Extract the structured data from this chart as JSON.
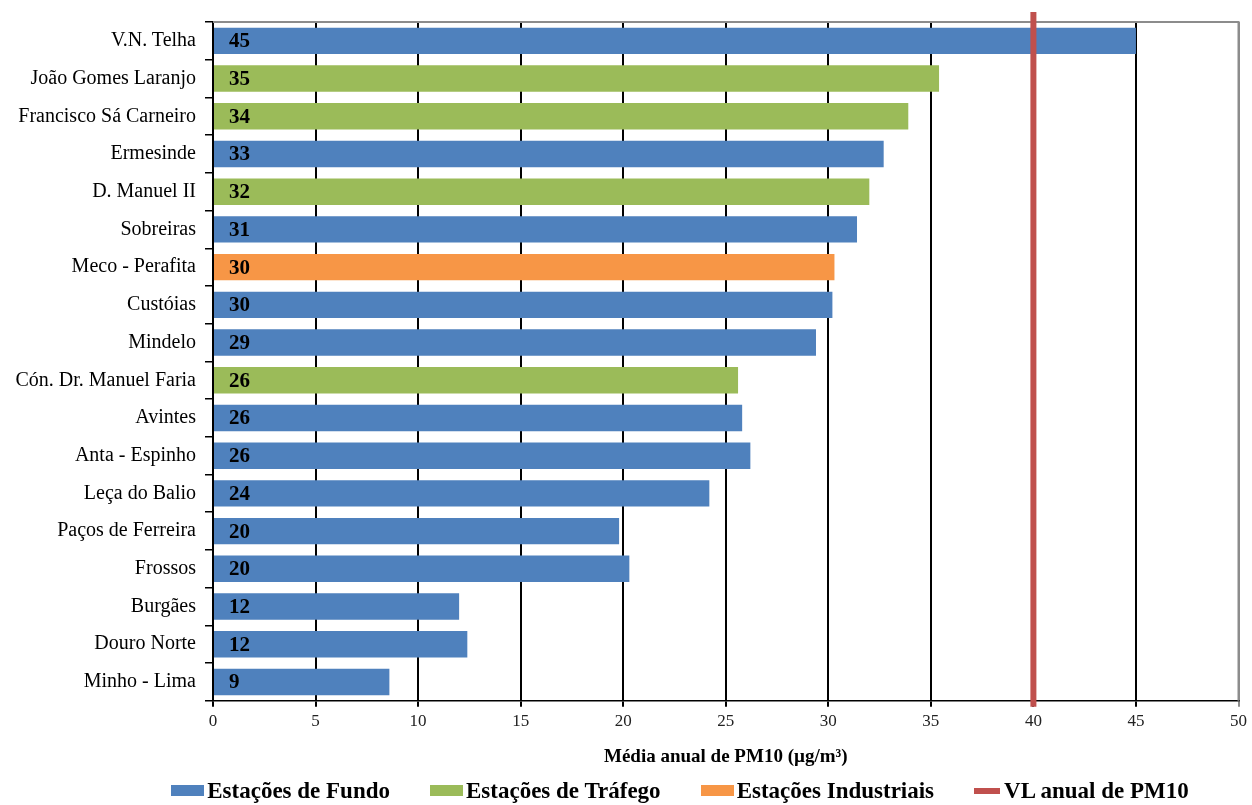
{
  "chart_data": {
    "type": "bar",
    "orientation": "horizontal",
    "stacked": true,
    "categories": [
      "V.N. Telha",
      "João Gomes Laranjo",
      "Francisco Sá Carneiro",
      "Ermesinde",
      "D. Manuel II",
      "Sobreiras",
      "Meco - Perafita",
      "Custóias",
      "Mindelo",
      "Cón. Dr. Manuel Faria",
      "Avintes",
      "Anta - Espinho",
      "Leça do Balio",
      "Paços de Ferreira",
      "Frossos",
      "Burgães",
      "Douro Norte",
      "Minho - Lima"
    ],
    "series": [
      {
        "name": "Estações de Fundo",
        "color": "#4f81bd",
        "values": [
          45,
          null,
          null,
          32.7,
          null,
          31.4,
          null,
          30.2,
          29.4,
          null,
          25.8,
          26.2,
          24.2,
          19.8,
          20.3,
          12.0,
          12.4,
          8.6
        ],
        "value_labels": [
          "45",
          null,
          null,
          "33",
          null,
          "31",
          null,
          "30",
          "29",
          null,
          "26",
          "26",
          "24",
          "20",
          "20",
          "12",
          "12",
          "9"
        ]
      },
      {
        "name": "Estações de Tráfego",
        "color": "#9bbb59",
        "values": [
          null,
          35.4,
          33.9,
          null,
          32.0,
          null,
          null,
          null,
          null,
          25.6,
          null,
          null,
          null,
          null,
          null,
          null,
          null,
          null
        ],
        "value_labels": [
          null,
          "35",
          "34",
          null,
          "32",
          null,
          null,
          null,
          null,
          "26",
          null,
          null,
          null,
          null,
          null,
          null,
          null,
          null
        ]
      },
      {
        "name": "Estações Industriais",
        "color": "#f79646",
        "values": [
          null,
          null,
          null,
          null,
          null,
          null,
          30.3,
          null,
          null,
          null,
          null,
          null,
          null,
          null,
          null,
          null,
          null,
          null
        ],
        "value_labels": [
          null,
          null,
          null,
          null,
          null,
          null,
          "30",
          null,
          null,
          null,
          null,
          null,
          null,
          null,
          null,
          null,
          null,
          null
        ]
      }
    ],
    "xlabel": "Média anual de PM10 (µg/m³)",
    "xlim": [
      0,
      50
    ],
    "xticks": [
      0,
      5,
      10,
      15,
      20,
      25,
      30,
      35,
      40,
      45,
      50
    ],
    "grid": "x",
    "legend": "bottom",
    "ref_lines": [
      {
        "axis": "x",
        "value": 40,
        "label": "VL anual de PM10",
        "color": "#c0504d"
      }
    ]
  }
}
